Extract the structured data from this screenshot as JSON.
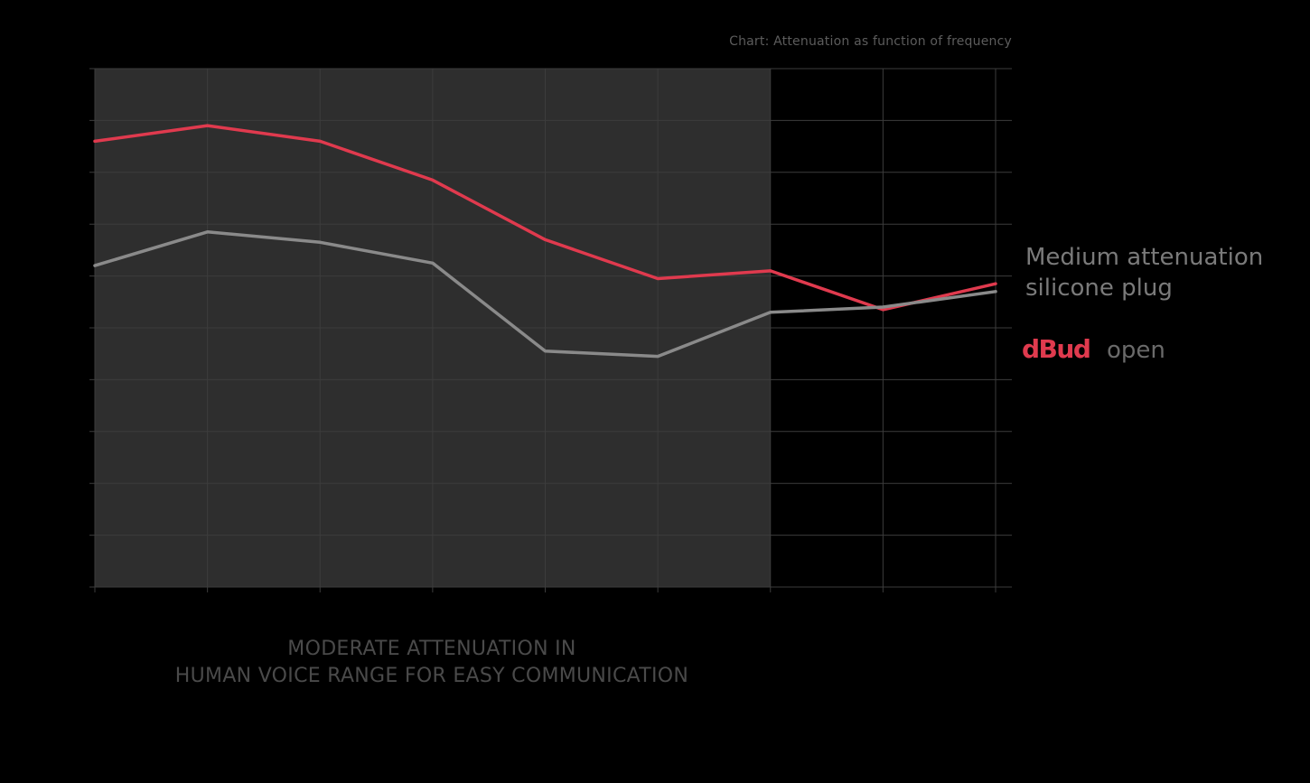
{
  "chart_data": {
    "type": "line",
    "title": "Chart: Attenuation as function of frequency",
    "xlabel": "",
    "ylabel": "",
    "x": [
      1,
      2,
      3,
      4,
      5,
      6,
      7,
      8,
      9
    ],
    "ylim": [
      0,
      10
    ],
    "grid": true,
    "highlight_region": {
      "x_range": [
        1,
        7
      ],
      "color": "#2e2e2e",
      "annotation": [
        "MODERATE ATTENUATION IN",
        "HUMAN VOICE RANGE FOR EASY COMMUNICATION"
      ]
    },
    "series": [
      {
        "legend": [
          "dBud",
          "open"
        ],
        "color": "#e03a4e",
        "values": [
          8.6,
          8.9,
          8.6,
          7.85,
          6.7,
          5.95,
          6.1,
          5.35,
          5.85
        ]
      },
      {
        "legend": [
          "Medium attenuation",
          "silicone plug"
        ],
        "color": "#8a8a8a",
        "values": [
          6.2,
          6.85,
          6.65,
          6.25,
          4.55,
          4.45,
          5.3,
          5.4,
          5.7
        ]
      }
    ],
    "legend_placement": "right"
  },
  "colors": {
    "background": "#000000",
    "shaded_region": "#2e2e2e",
    "grid": "#3c3c3c",
    "accent_red": "#e03a4e",
    "series_gray": "#8a8a8a"
  }
}
